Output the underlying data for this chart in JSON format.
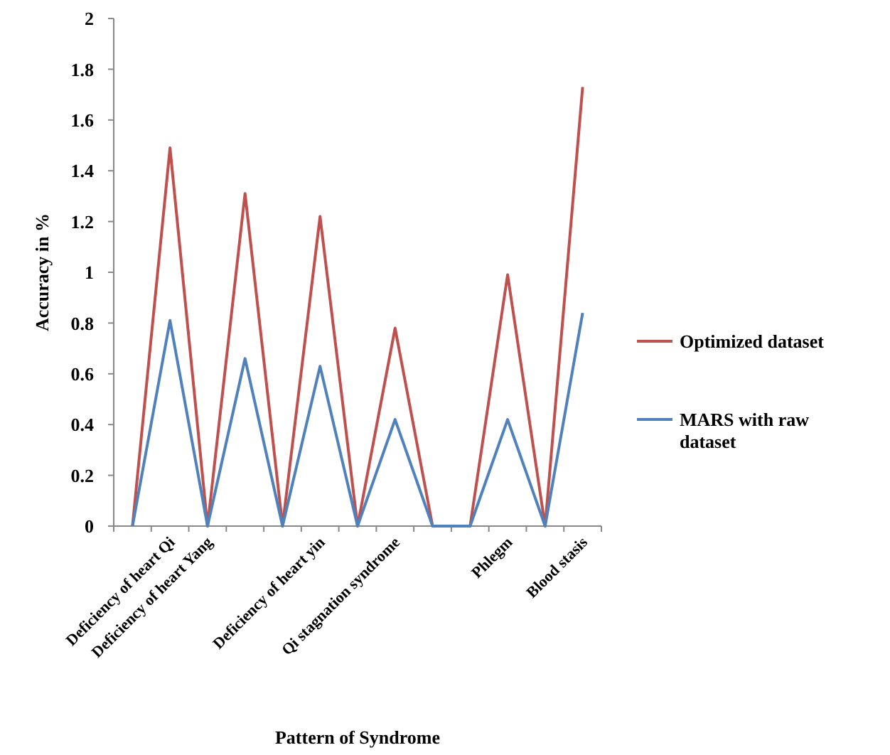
{
  "chart_data": {
    "type": "line",
    "xlabel": "Pattern of Syndrome",
    "ylabel": "Accuracy  in %",
    "categories": [
      null,
      "Deficiency of heart Qi",
      "Deficiency of heart Yang",
      null,
      null,
      "Deficiency of heart yin",
      null,
      "Qi stagnation syndrome",
      null,
      null,
      "Phlegm",
      null,
      "Blood stasis"
    ],
    "series": [
      {
        "name": "Optimized dataset",
        "color": "#c0504d",
        "values": [
          0,
          1.49,
          0,
          1.31,
          0,
          1.22,
          0,
          0.78,
          0,
          0,
          0.99,
          0,
          1.73
        ]
      },
      {
        "name": "MARS with raw dataset",
        "color": "#4f81bd",
        "values": [
          0,
          0.81,
          0,
          0.66,
          0,
          0.63,
          0,
          0.42,
          0,
          0,
          0.42,
          0,
          0.84
        ]
      }
    ],
    "ylim": [
      0,
      2
    ],
    "yticks": [
      0,
      0.2,
      0.4,
      0.6,
      0.8,
      1,
      1.2,
      1.4,
      1.6,
      1.8,
      2
    ],
    "legend": "right",
    "grid": false,
    "marker": "none",
    "line_style": "solid"
  }
}
